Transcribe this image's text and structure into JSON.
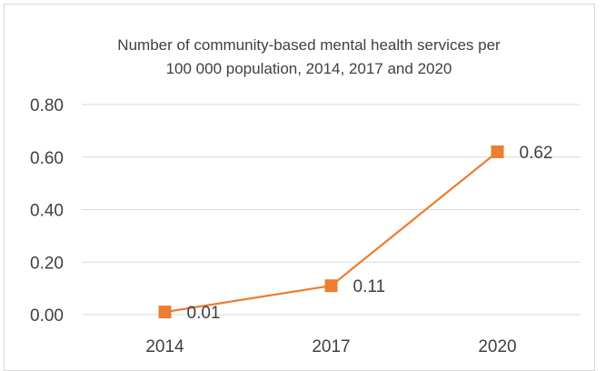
{
  "chart_data": {
    "type": "line",
    "title_lines": [
      "Number of community-based mental health services per",
      "100 000 population, 2014, 2017 and 2020"
    ],
    "categories": [
      "2014",
      "2017",
      "2020"
    ],
    "series": [
      {
        "values": [
          0.01,
          0.11,
          0.62
        ],
        "labels": [
          "0.01",
          "0.11",
          "0.62"
        ]
      }
    ],
    "y_ticks": [
      "0.00",
      "0.20",
      "0.40",
      "0.60",
      "0.80"
    ],
    "ylim": [
      0,
      0.8
    ],
    "grid": true,
    "legend": "none",
    "marker": "square",
    "colors": {
      "series": "#ed7d31",
      "grid": "#d9d9d9",
      "text": "#404040"
    }
  }
}
